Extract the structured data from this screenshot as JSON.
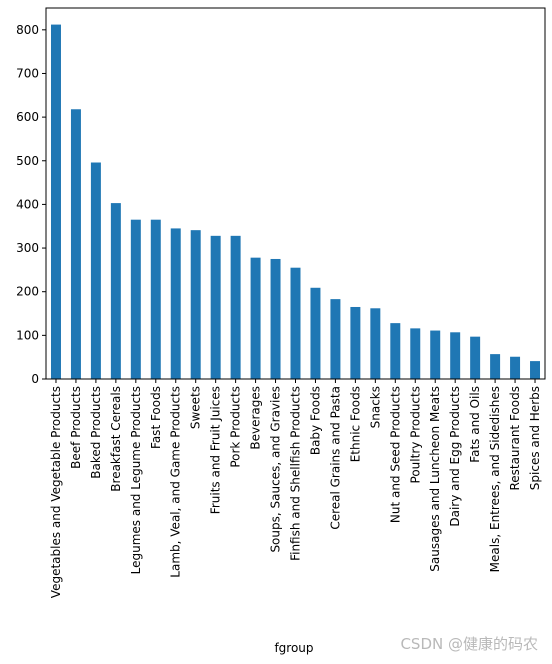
{
  "chart_data": {
    "type": "bar",
    "title": "",
    "xlabel": "fgroup",
    "ylabel": "",
    "ylim": [
      0,
      850
    ],
    "yticks": [
      0,
      100,
      200,
      300,
      400,
      500,
      600,
      700,
      800
    ],
    "grid": false,
    "bar_color": "#1f77b4",
    "categories": [
      "Vegetables and Vegetable Products",
      "Beef Products",
      "Baked Products",
      "Breakfast Cereals",
      "Legumes and Legume Products",
      "Fast Foods",
      "Lamb, Veal, and Game Products",
      "Sweets",
      "Fruits and Fruit Juices",
      "Pork Products",
      "Beverages",
      "Soups, Sauces, and Gravies",
      "Finfish and Shellfish Products",
      "Baby Foods",
      "Cereal Grains and Pasta",
      "Ethnic Foods",
      "Snacks",
      "Nut and Seed Products",
      "Poultry Products",
      "Sausages and Luncheon Meats",
      "Dairy and Egg Products",
      "Fats and Oils",
      "Meals, Entrees, and Sidedishes",
      "Restaurant Foods",
      "Spices and Herbs"
    ],
    "values": [
      812,
      618,
      496,
      403,
      365,
      365,
      345,
      341,
      328,
      328,
      278,
      275,
      255,
      209,
      183,
      165,
      162,
      128,
      116,
      111,
      107,
      97,
      57,
      51,
      41
    ]
  },
  "watermark": "CSDN @健康的码农"
}
